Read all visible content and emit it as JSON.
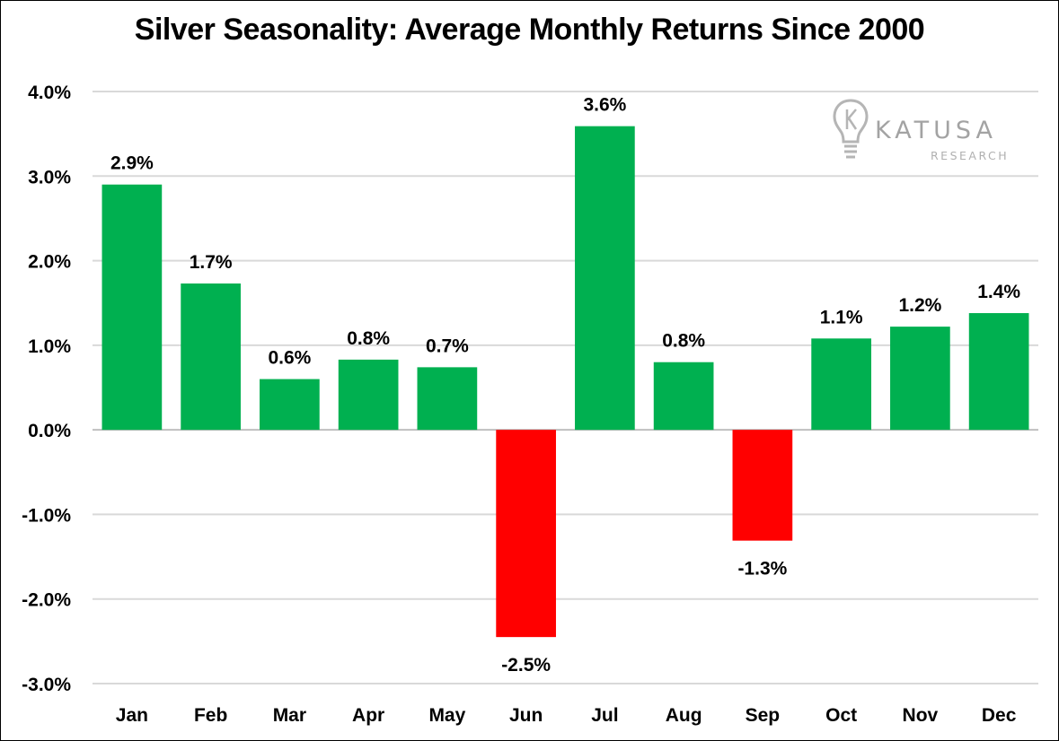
{
  "chart_data": {
    "type": "bar",
    "title": "Silver Seasonality: Average Monthly Returns Since 2000",
    "xlabel": "",
    "ylabel": "",
    "categories": [
      "Jan",
      "Feb",
      "Mar",
      "Apr",
      "May",
      "Jun",
      "Jul",
      "Aug",
      "Sep",
      "Oct",
      "Nov",
      "Dec"
    ],
    "values": [
      2.9,
      1.73,
      0.6,
      0.83,
      0.74,
      -2.45,
      3.59,
      0.8,
      -1.31,
      1.08,
      1.22,
      1.38
    ],
    "data_labels": [
      "2.9%",
      "1.7%",
      "0.6%",
      "0.8%",
      "0.7%",
      "-2.5%",
      "3.6%",
      "0.8%",
      "-1.3%",
      "1.1%",
      "1.2%",
      "1.4%"
    ],
    "ylim": [
      -3,
      4
    ],
    "yticks": [
      4,
      3,
      2,
      1,
      0,
      -1,
      -2,
      -3
    ],
    "ytick_labels": [
      "4.0%",
      "3.0%",
      "2.0%",
      "1.0%",
      "0.0%",
      "-1.0%",
      "-2.0%",
      "-3.0%"
    ],
    "grid": true,
    "colors": {
      "positive": "#00b050",
      "negative": "#ff0000",
      "grid": "#d9d9d9"
    }
  },
  "logo": {
    "name": "KATUSA",
    "subtitle": "RESEARCH",
    "icon": "lightbulb-k-icon"
  }
}
